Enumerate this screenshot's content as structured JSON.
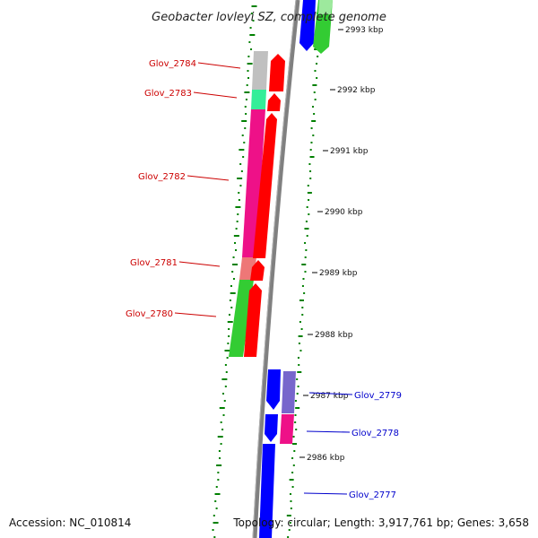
{
  "title": "Geobacter lovleyi SZ, complete genome",
  "footer": {
    "accession": "Accession: NC_010814",
    "topology": "Topology: circular; Length: 3,917,761 bp; Genes: 3,658"
  },
  "ticks": [
    {
      "label": "2993 kbp"
    },
    {
      "label": "2992 kbp"
    },
    {
      "label": "2991 kbp"
    },
    {
      "label": "2990 kbp"
    },
    {
      "label": "2989 kbp"
    },
    {
      "label": "2988 kbp"
    },
    {
      "label": "2987 kbp"
    },
    {
      "label": "2986 kbp"
    }
  ],
  "reverse_genes": [
    {
      "label": "Glov_2784",
      "color": "#cc0000"
    },
    {
      "label": "Glov_2783",
      "color": "#cc0000"
    },
    {
      "label": "Glov_2782",
      "color": "#cc0000"
    },
    {
      "label": "Glov_2781",
      "color": "#cc0000"
    },
    {
      "label": "Glov_2780",
      "color": "#cc0000"
    }
  ],
  "forward_genes": [
    {
      "label": "Glov_2779",
      "color": "#0000cc"
    },
    {
      "label": "Glov_2778",
      "color": "#0000cc"
    },
    {
      "label": "Glov_2777",
      "color": "#0000cc"
    }
  ],
  "colors": {
    "backbone": "#808080",
    "cds_reverse": "#ff0000",
    "cds_forward": "#0000ff",
    "gc_tick": "#008000",
    "cog_grey": "#c0c0c0",
    "cog_teal": "#33ee99",
    "cog_magenta": "#ee1188",
    "cog_salmon": "#ee7777",
    "cog_green": "#33cc33",
    "cog_purple": "#7766cc"
  }
}
